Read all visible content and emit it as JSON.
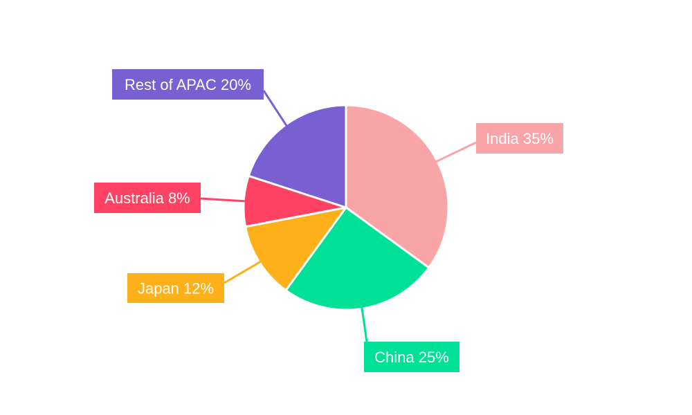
{
  "chart_data": {
    "type": "pie",
    "title": "",
    "slices": [
      {
        "label": "India",
        "value": 35,
        "color": "#f9a5a8"
      },
      {
        "label": "China",
        "value": 25,
        "color": "#00e096"
      },
      {
        "label": "Japan",
        "value": 12,
        "color": "#fdb01a"
      },
      {
        "label": "Australia",
        "value": 8,
        "color": "#ff4264"
      },
      {
        "label": "Rest of APAC",
        "value": 20,
        "color": "#785fd2"
      }
    ],
    "data_labels": [
      "India 35%",
      "China 25%",
      "Japan 12%",
      "Australia 8%",
      "Rest of APAC 20%"
    ],
    "start_angle": "12 o'clock",
    "direction": "clockwise",
    "legend": "none"
  }
}
